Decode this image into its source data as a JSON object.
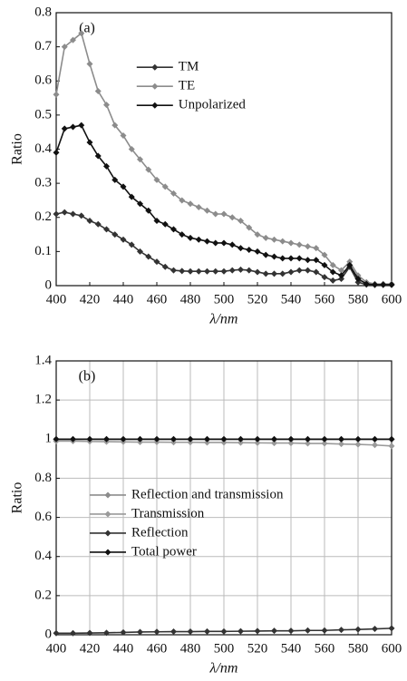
{
  "chart_data": [
    {
      "type": "line",
      "annotation": "(a)",
      "xlabel": "λ/nm",
      "ylabel": "Ratio",
      "x": [
        400,
        405,
        410,
        415,
        420,
        425,
        430,
        435,
        440,
        445,
        450,
        455,
        460,
        465,
        470,
        475,
        480,
        485,
        490,
        495,
        500,
        505,
        510,
        515,
        520,
        525,
        530,
        535,
        540,
        545,
        550,
        555,
        560,
        565,
        570,
        575,
        580,
        585,
        590,
        595,
        600
      ],
      "series": [
        {
          "name": "TM",
          "color": "#333333",
          "values": [
            0.21,
            0.215,
            0.21,
            0.205,
            0.19,
            0.18,
            0.165,
            0.15,
            0.135,
            0.12,
            0.1,
            0.085,
            0.07,
            0.055,
            0.045,
            0.043,
            0.042,
            0.042,
            0.042,
            0.042,
            0.042,
            0.045,
            0.047,
            0.045,
            0.04,
            0.035,
            0.035,
            0.035,
            0.04,
            0.045,
            0.045,
            0.04,
            0.025,
            0.015,
            0.02,
            0.055,
            0.01,
            0.003,
            0.002,
            0.002,
            0.002
          ]
        },
        {
          "name": "TE",
          "color": "#8c8c8c",
          "values": [
            0.56,
            0.7,
            0.72,
            0.74,
            0.65,
            0.57,
            0.53,
            0.47,
            0.44,
            0.4,
            0.37,
            0.34,
            0.31,
            0.29,
            0.27,
            0.25,
            0.24,
            0.23,
            0.22,
            0.21,
            0.21,
            0.2,
            0.19,
            0.17,
            0.15,
            0.14,
            0.135,
            0.13,
            0.125,
            0.12,
            0.115,
            0.11,
            0.09,
            0.06,
            0.045,
            0.07,
            0.03,
            0.01,
            0.005,
            0.005,
            0.005
          ]
        },
        {
          "name": "Unpolarized",
          "color": "#111111",
          "values": [
            0.39,
            0.46,
            0.465,
            0.47,
            0.42,
            0.38,
            0.35,
            0.31,
            0.29,
            0.26,
            0.24,
            0.22,
            0.19,
            0.18,
            0.165,
            0.15,
            0.14,
            0.135,
            0.13,
            0.125,
            0.125,
            0.12,
            0.11,
            0.105,
            0.1,
            0.09,
            0.085,
            0.08,
            0.08,
            0.08,
            0.075,
            0.075,
            0.06,
            0.04,
            0.03,
            0.06,
            0.02,
            0.005,
            0.003,
            0.003,
            0.003
          ]
        }
      ],
      "xlim": [
        400,
        600
      ],
      "ylim": [
        0,
        0.8
      ],
      "xticks": [
        400,
        420,
        440,
        460,
        480,
        500,
        520,
        540,
        560,
        580,
        600
      ],
      "yticks": [
        0,
        0.1,
        0.2,
        0.3,
        0.4,
        0.5,
        0.6,
        0.7,
        0.8
      ],
      "grid": false,
      "legend": "upper center"
    },
    {
      "type": "line",
      "annotation": "(b)",
      "xlabel": "λ/nm",
      "ylabel": "Ratio",
      "x": [
        400,
        410,
        420,
        430,
        440,
        450,
        460,
        470,
        480,
        490,
        500,
        510,
        520,
        530,
        540,
        550,
        560,
        570,
        580,
        590,
        600
      ],
      "series": [
        {
          "name": "Reflection and transmission",
          "color": "#8c8c8c",
          "values": [
            0.998,
            0.998,
            0.998,
            0.998,
            0.998,
            0.998,
            0.998,
            0.998,
            0.998,
            0.998,
            0.998,
            0.998,
            0.998,
            0.998,
            0.998,
            0.998,
            0.998,
            0.998,
            0.998,
            0.998,
            0.998
          ]
        },
        {
          "name": "Transmission",
          "color": "#9a9a9a",
          "values": [
            0.99,
            0.99,
            0.988,
            0.987,
            0.986,
            0.985,
            0.985,
            0.984,
            0.984,
            0.983,
            0.983,
            0.982,
            0.981,
            0.98,
            0.98,
            0.978,
            0.978,
            0.975,
            0.973,
            0.97,
            0.965
          ]
        },
        {
          "name": "Reflection",
          "color": "#333333",
          "values": [
            0.008,
            0.008,
            0.009,
            0.01,
            0.012,
            0.014,
            0.015,
            0.016,
            0.016,
            0.017,
            0.017,
            0.018,
            0.019,
            0.02,
            0.02,
            0.022,
            0.022,
            0.025,
            0.027,
            0.03,
            0.033
          ]
        },
        {
          "name": "Total power",
          "color": "#111111",
          "values": [
            1,
            1,
            1,
            1,
            1,
            1,
            1,
            1,
            1,
            1,
            1,
            1,
            1,
            1,
            1,
            1,
            1,
            1,
            1,
            1,
            1
          ]
        }
      ],
      "xlim": [
        400,
        600
      ],
      "ylim": [
        0,
        1.4
      ],
      "xticks": [
        400,
        420,
        440,
        460,
        480,
        500,
        520,
        540,
        560,
        580,
        600
      ],
      "yticks": [
        0,
        0.2,
        0.4,
        0.6,
        0.8,
        1,
        1.2,
        1.4
      ],
      "grid": true,
      "legend": "center left"
    }
  ]
}
